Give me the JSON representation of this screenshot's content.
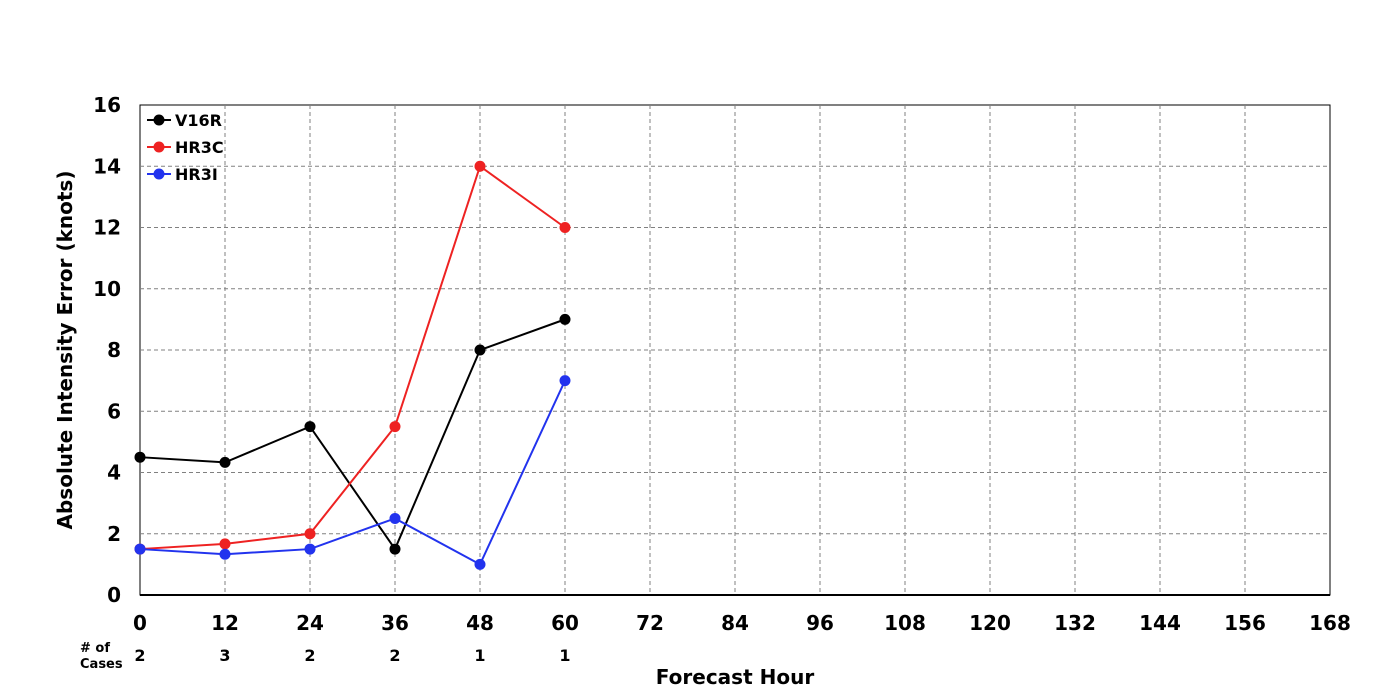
{
  "chart_data": {
    "type": "line",
    "xlabel": "Forecast Hour",
    "ylabel": "Absolute Intensity Error (knots)",
    "xlim": [
      0,
      168
    ],
    "ylim": [
      0,
      16
    ],
    "xticks": [
      0,
      12,
      24,
      36,
      48,
      60,
      72,
      84,
      96,
      108,
      120,
      132,
      144,
      156,
      168
    ],
    "yticks": [
      0,
      2,
      4,
      6,
      8,
      10,
      12,
      14,
      16
    ],
    "grid": true,
    "legend_position": "top-left",
    "x": [
      0,
      12,
      24,
      36,
      48,
      60
    ],
    "series": [
      {
        "name": "V16R",
        "color": "#000000",
        "values": [
          4.5,
          4.33,
          5.5,
          1.5,
          8.0,
          9.0
        ]
      },
      {
        "name": "HR3C",
        "color": "#ee2222",
        "values": [
          1.5,
          1.67,
          2.0,
          5.5,
          14.0,
          12.0
        ]
      },
      {
        "name": "HR3I",
        "color": "#2233ee",
        "values": [
          1.5,
          1.33,
          1.5,
          2.5,
          1.0,
          7.0
        ]
      }
    ],
    "cases": {
      "label_line1": "# of",
      "label_line2": "Cases",
      "x": [
        0,
        12,
        24,
        36,
        48,
        60
      ],
      "counts": [
        "2",
        "3",
        "2",
        "2",
        "1",
        "1"
      ]
    }
  }
}
